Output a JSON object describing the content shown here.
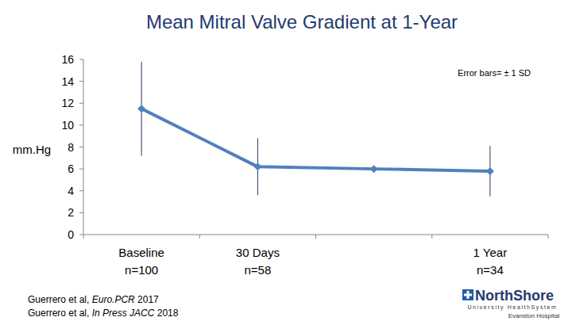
{
  "chart_data": {
    "type": "line",
    "title": "Mean Mitral Valve Gradient at 1-Year",
    "y_label": "mm.Hg",
    "categories": [
      "Baseline",
      "30 Days",
      null,
      "1 Year"
    ],
    "category_notes": [
      "n=100",
      "n=58",
      null,
      "n=34"
    ],
    "values": [
      11.5,
      6.2,
      6.0,
      5.8
    ],
    "errors": [
      4.3,
      2.6,
      null,
      2.3
    ],
    "color": "#4f81bd",
    "marker": "diamond",
    "ylim": [
      0,
      16
    ],
    "yticks": [
      0,
      2,
      4,
      6,
      8,
      10,
      12,
      14,
      16
    ],
    "grid": false,
    "annotation": "Error bars= ± 1 SD",
    "footnotes": [
      [
        "Guerrero et al, ",
        "Euro.PCR",
        " 2017"
      ],
      [
        "Guerrero et al, ",
        "In Press JACC",
        " 2018"
      ]
    ],
    "logo": {
      "name": "NorthShore",
      "sub": "University HealthSystem",
      "site": "Evanston Hospital"
    }
  }
}
